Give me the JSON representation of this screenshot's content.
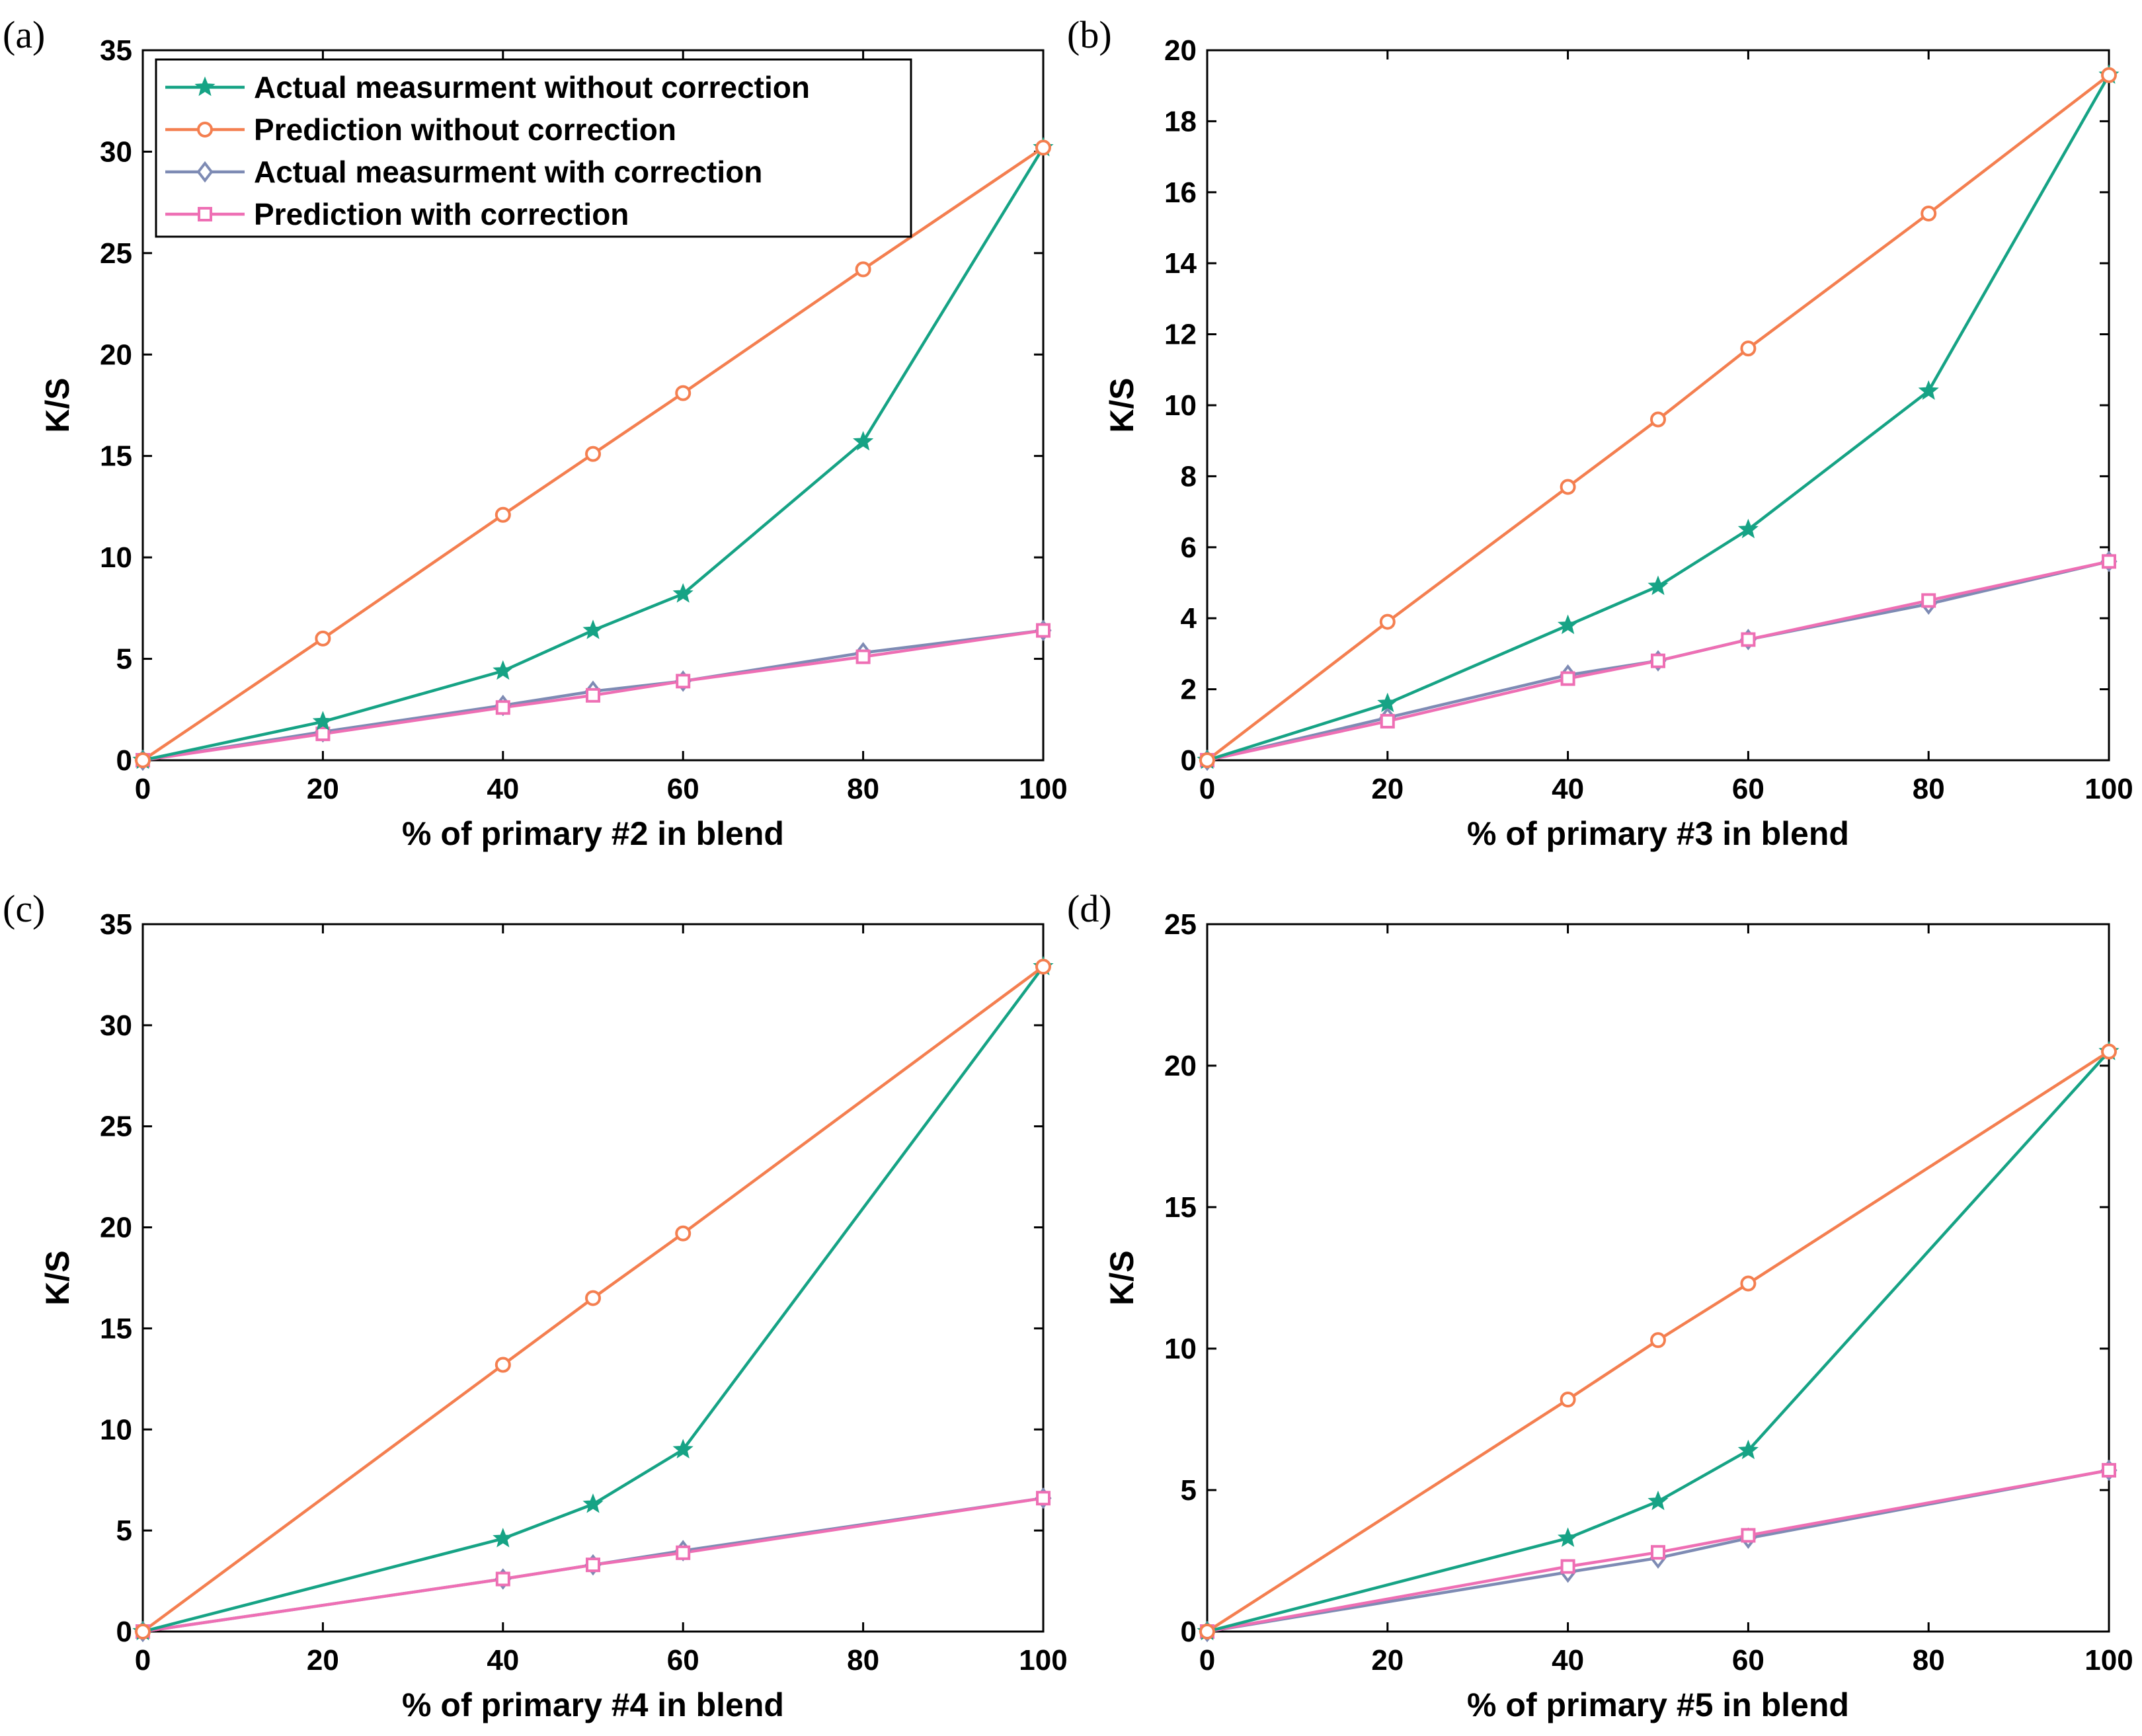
{
  "colors": {
    "actual_without": "#16a385",
    "pred_without": "#f47f50",
    "actual_with": "#7e8bb4",
    "pred_with": "#ee6fb4"
  },
  "legend": [
    {
      "key": "actual_without",
      "label": "Actual measurment without correction",
      "marker": "star"
    },
    {
      "key": "pred_without",
      "label": "Prediction without correction",
      "marker": "circle"
    },
    {
      "key": "actual_with",
      "label": "Actual measurment with correction",
      "marker": "diamond"
    },
    {
      "key": "pred_with",
      "label": "Prediction with correction",
      "marker": "square"
    }
  ],
  "chart_data": [
    {
      "type": "line",
      "panel_label": "(a)",
      "xlabel": "% of primary #2 in blend",
      "ylabel": "K/S",
      "xlim": [
        0,
        100
      ],
      "ylim": [
        0,
        35
      ],
      "xticks": [
        0,
        20,
        40,
        60,
        80,
        100
      ],
      "yticks": [
        0,
        5,
        10,
        15,
        20,
        25,
        30,
        35
      ],
      "legend_position": "top-left",
      "series": [
        {
          "name": "Actual measurment without correction",
          "key": "actual_without",
          "x": [
            0,
            20,
            40,
            50,
            60,
            80,
            100
          ],
          "y": [
            0,
            1.9,
            4.4,
            6.4,
            8.2,
            15.7,
            30.2
          ]
        },
        {
          "name": "Prediction without correction",
          "key": "pred_without",
          "x": [
            0,
            20,
            40,
            50,
            60,
            80,
            100
          ],
          "y": [
            0,
            6.0,
            12.1,
            15.1,
            18.1,
            24.2,
            30.2
          ]
        },
        {
          "name": "Actual measurment with correction",
          "key": "actual_with",
          "x": [
            0,
            20,
            40,
            50,
            60,
            80,
            100
          ],
          "y": [
            0,
            1.4,
            2.7,
            3.4,
            3.9,
            5.3,
            6.4
          ]
        },
        {
          "name": "Prediction with correction",
          "key": "pred_with",
          "x": [
            0,
            20,
            40,
            50,
            60,
            80,
            100
          ],
          "y": [
            0,
            1.3,
            2.6,
            3.2,
            3.9,
            5.1,
            6.4
          ]
        }
      ]
    },
    {
      "type": "line",
      "panel_label": "(b)",
      "xlabel": "% of primary #3 in blend",
      "ylabel": "K/S",
      "xlim": [
        0,
        100
      ],
      "ylim": [
        0,
        20
      ],
      "xticks": [
        0,
        20,
        40,
        60,
        80,
        100
      ],
      "yticks": [
        0,
        2,
        4,
        6,
        8,
        10,
        12,
        14,
        16,
        18,
        20
      ],
      "series": [
        {
          "name": "Actual measurment without correction",
          "key": "actual_without",
          "x": [
            0,
            20,
            40,
            50,
            60,
            80,
            100
          ],
          "y": [
            0,
            1.6,
            3.8,
            4.9,
            6.5,
            10.4,
            19.3
          ]
        },
        {
          "name": "Prediction without correction",
          "key": "pred_without",
          "x": [
            0,
            20,
            40,
            50,
            60,
            80,
            100
          ],
          "y": [
            0,
            3.9,
            7.7,
            9.6,
            11.6,
            15.4,
            19.3
          ]
        },
        {
          "name": "Actual measurment with correction",
          "key": "actual_with",
          "x": [
            0,
            20,
            40,
            50,
            60,
            80,
            100
          ],
          "y": [
            0,
            1.2,
            2.4,
            2.8,
            3.4,
            4.4,
            5.6
          ]
        },
        {
          "name": "Prediction with correction",
          "key": "pred_with",
          "x": [
            0,
            20,
            40,
            50,
            60,
            80,
            100
          ],
          "y": [
            0,
            1.1,
            2.3,
            2.8,
            3.4,
            4.5,
            5.6
          ]
        }
      ]
    },
    {
      "type": "line",
      "panel_label": "(c)",
      "xlabel": "% of primary #4 in blend",
      "ylabel": "K/S",
      "xlim": [
        0,
        100
      ],
      "ylim": [
        0,
        35
      ],
      "xticks": [
        0,
        20,
        40,
        60,
        80,
        100
      ],
      "yticks": [
        0,
        5,
        10,
        15,
        20,
        25,
        30,
        35
      ],
      "series": [
        {
          "name": "Actual measurment without correction",
          "key": "actual_without",
          "x": [
            0,
            40,
            50,
            60,
            100
          ],
          "y": [
            0,
            4.6,
            6.3,
            9.0,
            32.9
          ]
        },
        {
          "name": "Prediction without correction",
          "key": "pred_without",
          "x": [
            0,
            40,
            50,
            60,
            100
          ],
          "y": [
            0,
            13.2,
            16.5,
            19.7,
            32.9
          ]
        },
        {
          "name": "Actual measurment with correction",
          "key": "actual_with",
          "x": [
            0,
            40,
            50,
            60,
            100
          ],
          "y": [
            0,
            2.6,
            3.3,
            4.0,
            6.6
          ]
        },
        {
          "name": "Prediction with correction",
          "key": "pred_with",
          "x": [
            0,
            40,
            50,
            60,
            100
          ],
          "y": [
            0,
            2.6,
            3.3,
            3.9,
            6.6
          ]
        }
      ]
    },
    {
      "type": "line",
      "panel_label": "(d)",
      "xlabel": "% of primary #5 in blend",
      "ylabel": "K/S",
      "xlim": [
        0,
        100
      ],
      "ylim": [
        0,
        25
      ],
      "xticks": [
        0,
        20,
        40,
        60,
        80,
        100
      ],
      "yticks": [
        0,
        5,
        10,
        15,
        20,
        25
      ],
      "series": [
        {
          "name": "Actual measurment without correction",
          "key": "actual_without",
          "x": [
            0,
            40,
            50,
            60,
            100
          ],
          "y": [
            0,
            3.3,
            4.6,
            6.4,
            20.5
          ]
        },
        {
          "name": "Prediction without correction",
          "key": "pred_without",
          "x": [
            0,
            40,
            50,
            60,
            100
          ],
          "y": [
            0,
            8.2,
            10.3,
            12.3,
            20.5
          ]
        },
        {
          "name": "Actual measurment with correction",
          "key": "actual_with",
          "x": [
            0,
            40,
            50,
            60,
            100
          ],
          "y": [
            0,
            2.1,
            2.6,
            3.3,
            5.7
          ]
        },
        {
          "name": "Prediction with correction",
          "key": "pred_with",
          "x": [
            0,
            40,
            50,
            60,
            100
          ],
          "y": [
            0,
            2.3,
            2.8,
            3.4,
            5.7
          ]
        }
      ]
    }
  ]
}
